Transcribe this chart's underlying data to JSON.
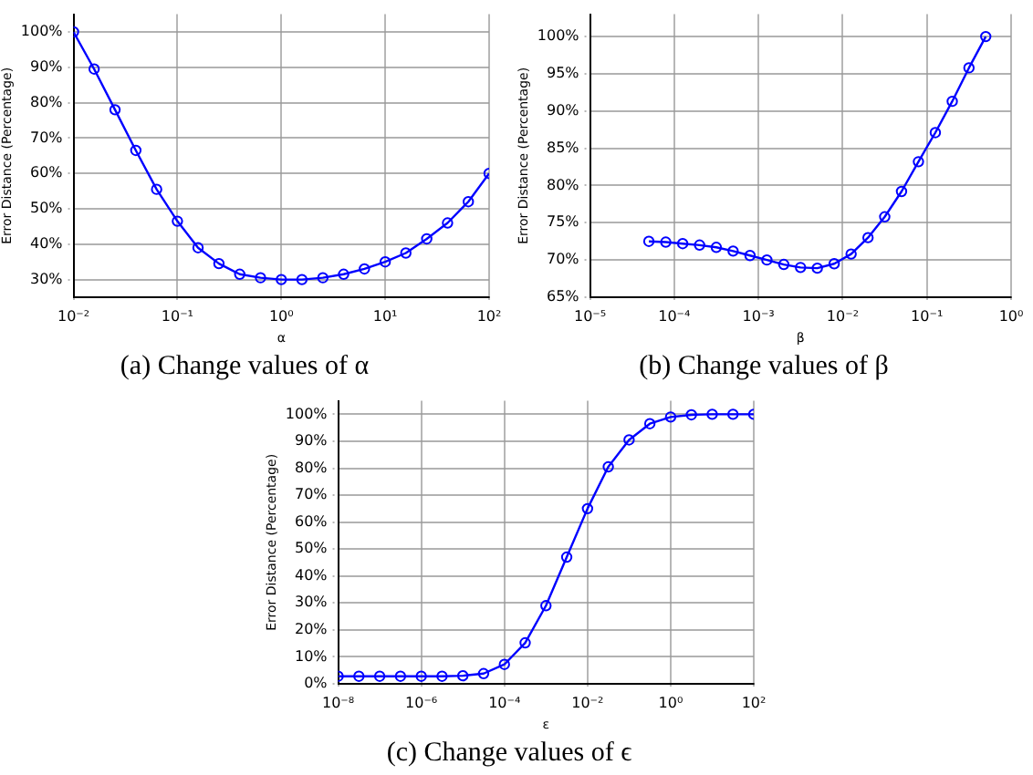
{
  "chart_data": [
    {
      "type": "line",
      "title": "(a) Change values of α",
      "xlabel": "α",
      "ylabel": "Error Distance (Percentage)",
      "log": "x",
      "grid": true,
      "marker": "circle",
      "line_style": "solid",
      "x": [
        0.01,
        0.0158,
        0.0251,
        0.0398,
        0.0631,
        0.1,
        0.158,
        0.251,
        0.398,
        0.631,
        1,
        1.58,
        2.51,
        3.98,
        6.31,
        10,
        15.8,
        25.1,
        39.8,
        63.1,
        100
      ],
      "series": [
        {
          "color": "#0000ff",
          "values": [
            100,
            89.5,
            78,
            66.5,
            55.5,
            46.5,
            39,
            34.5,
            31.5,
            30.5,
            30,
            30,
            30.5,
            31.5,
            33,
            35,
            37.5,
            41.5,
            46,
            52,
            60
          ]
        }
      ],
      "xlim": [
        0.01,
        100
      ],
      "xticks": [
        {
          "value": 0.01,
          "label": "10⁻²"
        },
        {
          "value": 0.1,
          "label": "10⁻¹"
        },
        {
          "value": 1,
          "label": "10⁰"
        },
        {
          "value": 10,
          "label": "10¹"
        },
        {
          "value": 100,
          "label": "10²"
        }
      ],
      "ylim": [
        25,
        105
      ],
      "yticks": [
        {
          "value": 30,
          "label": "30%"
        },
        {
          "value": 40,
          "label": "40%"
        },
        {
          "value": 50,
          "label": "50%"
        },
        {
          "value": 60,
          "label": "60%"
        },
        {
          "value": 70,
          "label": "70%"
        },
        {
          "value": 80,
          "label": "80%"
        },
        {
          "value": 90,
          "label": "90%"
        },
        {
          "value": 100,
          "label": "100%"
        }
      ]
    },
    {
      "type": "line",
      "title": "(b) Change values of β",
      "xlabel": "β",
      "ylabel": "Error Distance (Percentage)",
      "log": "x",
      "grid": true,
      "marker": "circle",
      "line_style": "solid",
      "x": [
        5e-05,
        7.94e-05,
        0.000126,
        0.0002,
        0.000316,
        0.0005,
        0.000794,
        0.00126,
        0.002,
        0.00316,
        0.005,
        0.00794,
        0.0126,
        0.02,
        0.0316,
        0.05,
        0.0794,
        0.126,
        0.2,
        0.316,
        0.5
      ],
      "series": [
        {
          "color": "#0000ff",
          "values": [
            72.5,
            72.4,
            72.2,
            72,
            71.7,
            71.2,
            70.6,
            70,
            69.4,
            69,
            68.9,
            69.5,
            70.8,
            73,
            75.8,
            79.2,
            83.2,
            87.1,
            91.3,
            95.8,
            100
          ]
        }
      ],
      "xlim": [
        1e-05,
        1
      ],
      "xticks": [
        {
          "value": 1e-05,
          "label": "10⁻⁵"
        },
        {
          "value": 0.0001,
          "label": "10⁻⁴"
        },
        {
          "value": 0.001,
          "label": "10⁻³"
        },
        {
          "value": 0.01,
          "label": "10⁻²"
        },
        {
          "value": 0.1,
          "label": "10⁻¹"
        },
        {
          "value": 1,
          "label": "10⁰"
        }
      ],
      "ylim": [
        65,
        103
      ],
      "yticks": [
        {
          "value": 65,
          "label": "65%"
        },
        {
          "value": 70,
          "label": "70%"
        },
        {
          "value": 75,
          "label": "75%"
        },
        {
          "value": 80,
          "label": "80%"
        },
        {
          "value": 85,
          "label": "85%"
        },
        {
          "value": 90,
          "label": "90%"
        },
        {
          "value": 95,
          "label": "95%"
        },
        {
          "value": 100,
          "label": "100%"
        }
      ]
    },
    {
      "type": "line",
      "title": "(c) Change values of ϵ",
      "xlabel": "ε",
      "ylabel": "Error Distance (Percentage)",
      "log": "x",
      "grid": true,
      "marker": "circle",
      "line_style": "solid",
      "x": [
        1e-08,
        3.16e-08,
        1e-07,
        3.16e-07,
        1e-06,
        3.16e-06,
        1e-05,
        3.16e-05,
        0.0001,
        0.000316,
        0.001,
        0.00316,
        0.01,
        0.0316,
        0.1,
        0.316,
        1,
        3.16,
        10,
        31.6,
        100
      ],
      "series": [
        {
          "color": "#0000ff",
          "values": [
            2.8,
            2.8,
            2.8,
            2.8,
            2.8,
            2.8,
            3,
            3.8,
            7.2,
            15.2,
            29,
            47,
            65,
            80.5,
            90.5,
            96.5,
            99,
            99.8,
            100,
            100,
            100
          ]
        }
      ],
      "xlim": [
        1e-08,
        100
      ],
      "xticks": [
        {
          "value": 1e-08,
          "label": "10⁻⁸"
        },
        {
          "value": 1e-06,
          "label": "10⁻⁶"
        },
        {
          "value": 0.0001,
          "label": "10⁻⁴"
        },
        {
          "value": 0.01,
          "label": "10⁻²"
        },
        {
          "value": 1,
          "label": "10⁰"
        },
        {
          "value": 100,
          "label": "10²"
        }
      ],
      "ylim": [
        0,
        105
      ],
      "yticks": [
        {
          "value": 0,
          "label": "0%"
        },
        {
          "value": 10,
          "label": "10%"
        },
        {
          "value": 20,
          "label": "20%"
        },
        {
          "value": 30,
          "label": "30%"
        },
        {
          "value": 40,
          "label": "40%"
        },
        {
          "value": 50,
          "label": "50%"
        },
        {
          "value": 60,
          "label": "60%"
        },
        {
          "value": 70,
          "label": "70%"
        },
        {
          "value": 80,
          "label": "80%"
        },
        {
          "value": 90,
          "label": "90%"
        },
        {
          "value": 100,
          "label": "100%"
        }
      ]
    }
  ]
}
